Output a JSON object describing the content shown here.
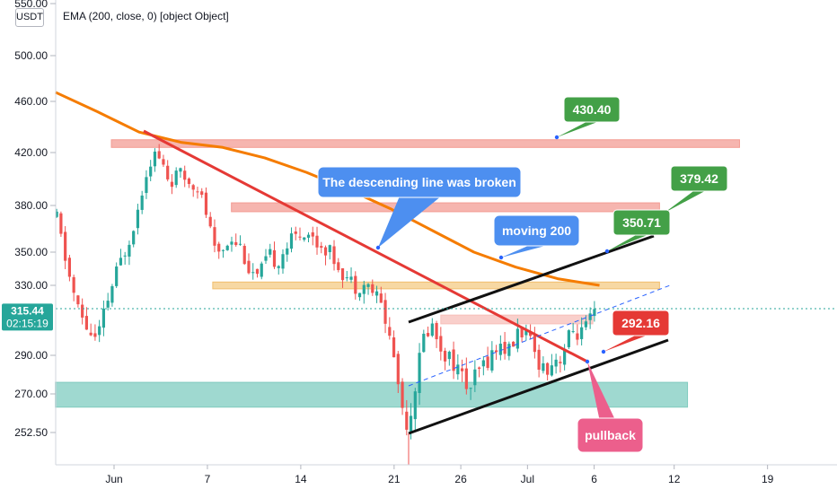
{
  "header": {
    "unit": "USDT",
    "indicator_label": "EMA (200, close, 0) [object Object]"
  },
  "price_tag": {
    "price": "315.44",
    "countdown": "02:15:19"
  },
  "colors": {
    "up": "#26a69a",
    "down": "#ef5350",
    "ema": "#f57c00",
    "trendline": "#e53935",
    "channel": "#111111",
    "callout_green": "#43a047",
    "callout_red": "#e53935",
    "callout_blue": "#4d8ff0",
    "callout_pink": "#ec5f8c",
    "zone_red": "#f5a9a2",
    "zone_orange": "#f7d49a",
    "zone_teal": "#8fd3c8"
  },
  "annotations": {
    "target_430": "430.40",
    "target_379": "379.42",
    "target_350": "350.71",
    "stop_292": "292.16",
    "note_broken": "The descending line was broken",
    "note_ma": "moving 200",
    "note_pullback": "pullback"
  },
  "chart_data": {
    "type": "candlestick",
    "title": "",
    "xlabel": "",
    "ylabel": "",
    "x_ticks": [
      "Jun",
      "7",
      "14",
      "21",
      "26",
      "Jul",
      "6",
      "12",
      "19"
    ],
    "y_ticks": [
      "550.00",
      "500.00",
      "460.00",
      "420.00",
      "380.00",
      "350.00",
      "330.00",
      "290.00",
      "270.00",
      "252.50"
    ],
    "last_price": 315.44,
    "grid": false,
    "series": [
      {
        "name": "EMA (200, close, 0)",
        "type": "line",
        "points": [
          [
            0,
            468
          ],
          [
            4,
            452
          ],
          [
            8,
            436
          ],
          [
            12,
            428
          ],
          [
            16,
            424
          ],
          [
            20,
            416
          ],
          [
            24,
            405
          ],
          [
            28,
            392
          ],
          [
            32,
            378
          ],
          [
            36,
            364
          ],
          [
            40,
            350
          ],
          [
            44,
            341
          ],
          [
            48,
            334
          ],
          [
            50,
            330
          ]
        ]
      }
    ],
    "levels": [
      {
        "label": "",
        "low": 424,
        "high": 430
      },
      {
        "label": "",
        "low": 376,
        "high": 382
      },
      {
        "label": "",
        "low": 328,
        "high": 332
      },
      {
        "label": "",
        "low": 308,
        "high": 313
      },
      {
        "label": "",
        "low": 264,
        "high": 276
      }
    ]
  }
}
